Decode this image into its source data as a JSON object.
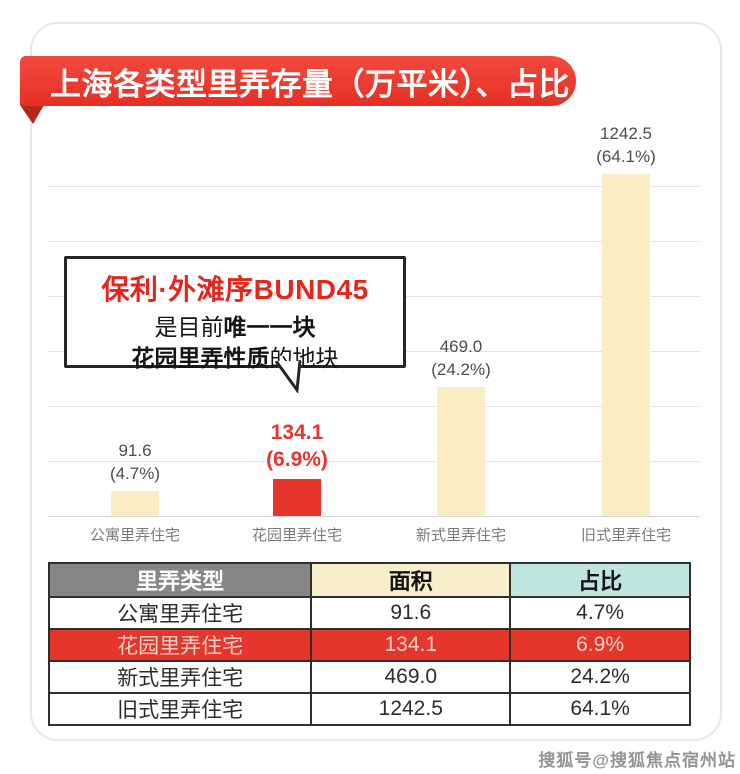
{
  "page": {
    "title_banner": "上海各类型里弄存量（万平米）、占比",
    "watermark": "搜狐号@搜狐焦点宿州站"
  },
  "callout": {
    "line1": "保利·外滩序BUND45",
    "line2_prefix": "是目前",
    "line2_bold": "唯一一块",
    "line3_bold": "花园里弄性质",
    "line3_suffix": "的地块"
  },
  "chart_data": {
    "type": "bar",
    "title": "上海各类型里弄存量（万平米）、占比",
    "categories": [
      "公寓里弄住宅",
      "花园里弄住宅",
      "新式里弄住宅",
      "旧式里弄住宅"
    ],
    "values": [
      91.6,
      134.1,
      469.0,
      1242.5
    ],
    "value_labels": [
      "91.6",
      "134.1",
      "469.0",
      "1242.5"
    ],
    "percentages": [
      "4.7%",
      "6.9%",
      "24.2%",
      "64.1%"
    ],
    "highlight_index": 1,
    "unit": "万平米",
    "ylabel": "",
    "xlabel": "",
    "ylim": [
      0,
      1242.5
    ],
    "grid": true,
    "grid_max": 1200,
    "gridline_step": 200,
    "legend": "none",
    "colors": {
      "bar_default": "#faedc6",
      "bar_highlight": "#e6352a",
      "label_default": "#4c4c4c",
      "label_highlight": "#e6352a",
      "gridline": "#e4e4e4"
    }
  },
  "table": {
    "headers": [
      "里弄类型",
      "面积",
      "占比"
    ],
    "rows": [
      {
        "type": "公寓里弄住宅",
        "area": "91.6",
        "share": "4.7%"
      },
      {
        "type": "花园里弄住宅",
        "area": "134.1",
        "share": "6.9%"
      },
      {
        "type": "新式里弄住宅",
        "area": "469.0",
        "share": "24.2%"
      },
      {
        "type": "旧式里弄住宅",
        "area": "1242.5",
        "share": "64.1%"
      }
    ],
    "highlight_row": 1,
    "header_colors": {
      "type": "#868686",
      "area": "#f8eecb",
      "share": "#bee5de"
    },
    "highlight_row_color": "#e5362b"
  },
  "theme": {
    "banner_red": "#e62f24",
    "banner_fold_red": "#b4271d",
    "callout_title_red": "#e6251b",
    "card_border": "#e7e7e7"
  }
}
